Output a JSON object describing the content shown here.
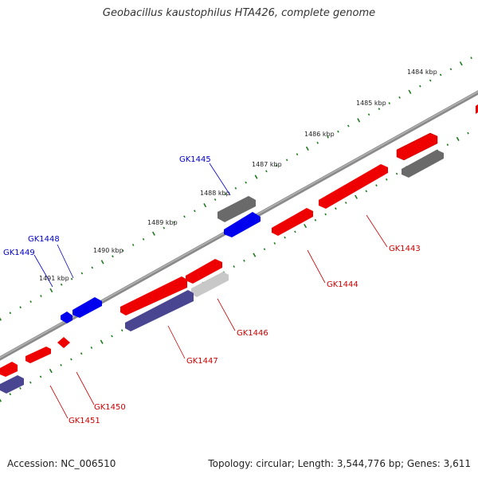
{
  "title": "Geobacillus kaustophilus HTA426, complete genome",
  "footer": {
    "accession": "Accession: NC_006510",
    "summary": "Topology: circular; Length: 3,544,776 bp; Genes: 3,611"
  },
  "colors": {
    "backbone": "#888888",
    "tick": "#1f7a1f",
    "forward_gene": "#ee0000",
    "reverse_gene": "#0000ee",
    "gray_gene": "#666666",
    "light_gray_gene": "#c4c4c4",
    "purple_gene": "#4a4590",
    "forward_label": "#cc0000",
    "reverse_label": "#0000cc"
  },
  "ruler": [
    {
      "label": "1484 kbp"
    },
    {
      "label": "1485 kbp"
    },
    {
      "label": "1486 kbp"
    },
    {
      "label": "1487 kbp"
    },
    {
      "label": "1488 kbp"
    },
    {
      "label": "1489 kbp"
    },
    {
      "label": "1490 kbp"
    },
    {
      "label": "1491 kbp"
    }
  ],
  "genes": [
    {
      "label": "GK1443",
      "strand": "forward",
      "color": "red"
    },
    {
      "label": "GK1444",
      "strand": "forward",
      "color": "red"
    },
    {
      "label": "GK1445",
      "strand": "reverse",
      "color": "blue"
    },
    {
      "label": "GK1446",
      "strand": "forward",
      "color": "red"
    },
    {
      "label": "GK1447",
      "strand": "forward",
      "color": "red"
    },
    {
      "label": "GK1448",
      "strand": "reverse",
      "color": "blue"
    },
    {
      "label": "GK1449",
      "strand": "reverse",
      "color": "blue"
    },
    {
      "label": "GK1450",
      "strand": "forward",
      "color": "red"
    },
    {
      "label": "GK1451",
      "strand": "forward",
      "color": "red"
    }
  ]
}
